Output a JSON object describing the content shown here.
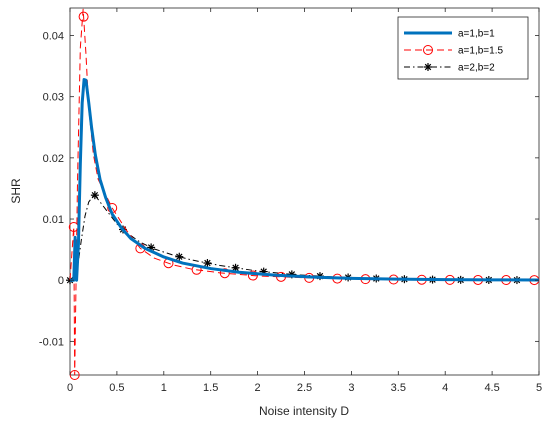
{
  "chart_data": {
    "type": "line",
    "title": "",
    "xlabel": "Noise intensity D",
    "ylabel": "SHR",
    "xlim": [
      0,
      5
    ],
    "ylim": [
      -0.0155,
      0.0445
    ],
    "xticks": [
      0,
      0.5,
      1,
      1.5,
      2,
      2.5,
      3,
      3.5,
      4,
      4.5,
      5
    ],
    "xtick_labels": [
      "0",
      "0.5",
      "1",
      "1.5",
      "2",
      "2.5",
      "3",
      "3.5",
      "4",
      "4.5",
      "5"
    ],
    "yticks": [
      -0.01,
      0,
      0.01,
      0.02,
      0.03,
      0.04
    ],
    "ytick_labels": [
      "-0.01",
      "0",
      "0.01",
      "0.02",
      "0.03",
      "0.04"
    ],
    "grid": false,
    "legend_position": "top-right",
    "series": [
      {
        "name": "a=1,b=1",
        "color": "#0072BD",
        "line_style": "solid",
        "marker": "none",
        "x": [
          0.0,
          0.04,
          0.055,
          0.07,
          0.09,
          0.11,
          0.13,
          0.15,
          0.17,
          0.2,
          0.23,
          0.27,
          0.32,
          0.38,
          0.45,
          0.55,
          0.65,
          0.8,
          1.0,
          1.2,
          1.5,
          1.8,
          2.2,
          2.6,
          3.0,
          3.5,
          4.0,
          4.5,
          5.0
        ],
        "y": [
          0.0,
          0.0,
          0.007,
          0.0,
          0.006,
          0.019,
          0.029,
          0.0328,
          0.0327,
          0.029,
          0.025,
          0.0205,
          0.0165,
          0.0135,
          0.0108,
          0.0085,
          0.0068,
          0.0052,
          0.0038,
          0.0028,
          0.0019,
          0.0013,
          0.0008,
          0.0005,
          0.0003,
          0.00018,
          0.0001,
          5e-05,
          3e-05
        ]
      },
      {
        "name": "a=1,b=1.5",
        "color": "#FF0000",
        "line_style": "dashed",
        "marker": "circle",
        "x": [
          0.0,
          0.04,
          0.05,
          0.08,
          0.11,
          0.14,
          0.17,
          0.2,
          0.25,
          0.3,
          0.38,
          0.45,
          0.6,
          0.75,
          0.9,
          1.1,
          1.3,
          1.6,
          2.0,
          2.5,
          3.0,
          3.5,
          4.0,
          4.5,
          5.0
        ],
        "x_markers": [
          0.04,
          0.05,
          0.145,
          0.45,
          0.75,
          1.05,
          1.35,
          1.65,
          1.95,
          2.25,
          2.55,
          2.85,
          3.15,
          3.45,
          3.75,
          4.05,
          4.35,
          4.65,
          4.95
        ],
        "y": [
          0.0,
          0.0087,
          -0.0155,
          0.016,
          0.038,
          0.0443,
          0.037,
          0.028,
          0.0205,
          0.0165,
          0.014,
          0.0118,
          0.0082,
          0.0052,
          0.0036,
          0.0025,
          0.0018,
          0.0012,
          0.0007,
          0.0004,
          0.0002,
          0.0001,
          5e-05,
          3e-05,
          2e-05
        ]
      },
      {
        "name": "a=2,b=2",
        "color": "#000000",
        "line_style": "dashdot",
        "marker": "asterisk",
        "x": [
          0.0,
          0.05,
          0.08,
          0.12,
          0.16,
          0.2,
          0.26,
          0.32,
          0.4,
          0.5,
          0.6,
          0.75,
          0.9,
          1.1,
          1.3,
          1.6,
          2.0,
          2.4,
          2.8,
          3.2,
          3.6,
          4.0,
          4.5,
          5.0
        ],
        "x_markers": [
          0.0,
          0.265,
          0.565,
          0.865,
          1.165,
          1.465,
          1.765,
          2.065,
          2.365,
          2.665,
          2.965,
          3.265,
          3.565,
          3.865,
          4.165,
          4.465,
          4.765
        ],
        "y": [
          0.0,
          0.0,
          0.002,
          0.0065,
          0.0105,
          0.0128,
          0.014,
          0.0128,
          0.0112,
          0.0092,
          0.0078,
          0.0062,
          0.0051,
          0.0041,
          0.0033,
          0.0024,
          0.0015,
          0.0009,
          0.00055,
          0.0003,
          0.00015,
          7e-05,
          3e-05,
          1e-05
        ]
      }
    ]
  }
}
